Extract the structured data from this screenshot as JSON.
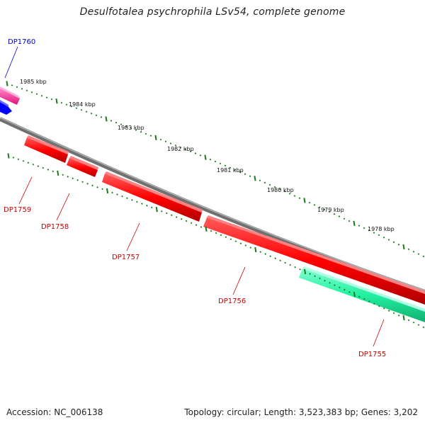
{
  "title": "Desulfotalea psychrophila LSv54, complete genome",
  "accession_text": "Accession: NC_006138",
  "summary_text": "Topology: circular; Length: 3,523,383 bp; Genes: 3,202",
  "scale_labels": [
    "1985 kbp",
    "1984 kbp",
    "1983 kbp",
    "1982 kbp",
    "1981 kbp",
    "1980 kbp",
    "1979 kbp",
    "1978 kbp"
  ],
  "genes": [
    {
      "name": "DP1760",
      "color": "#0000cc"
    },
    {
      "name": "DP1759",
      "color": "#cc0000"
    },
    {
      "name": "DP1758",
      "color": "#cc0000"
    },
    {
      "name": "DP1757",
      "color": "#cc0000"
    },
    {
      "name": "DP1756",
      "color": "#cc0000"
    },
    {
      "name": "DP1755",
      "color": "#cc0000"
    }
  ],
  "colors": {
    "forward_gene_pink": "#ff3399",
    "forward_gene_blue": "#0000ff",
    "reverse_gene_red": "#ff0000",
    "reverse_gene_teal": "#22f0a0",
    "backbone": "#808080",
    "tick": "#1a7a1a"
  }
}
